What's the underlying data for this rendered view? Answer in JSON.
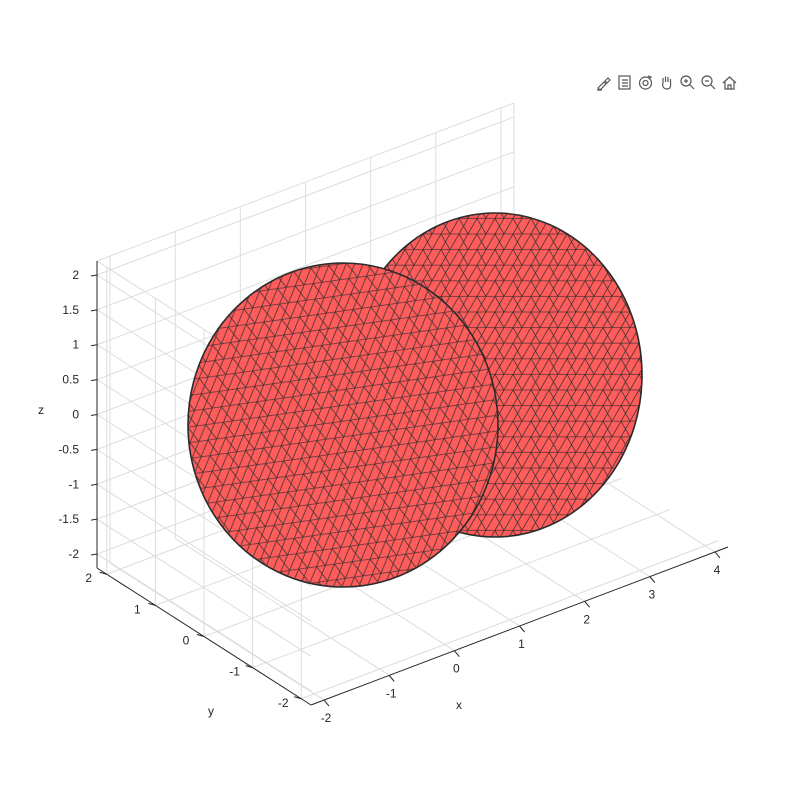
{
  "toolbar": {
    "items": [
      {
        "icon": "brush-icon",
        "tooltip": ""
      },
      {
        "icon": "legend-icon",
        "tooltip": ""
      },
      {
        "icon": "rotate-3d-icon",
        "tooltip": ""
      },
      {
        "icon": "pan-hand-icon",
        "tooltip": ""
      },
      {
        "icon": "zoom-in-icon",
        "tooltip": ""
      },
      {
        "icon": "zoom-out-icon",
        "tooltip": ""
      },
      {
        "icon": "home-icon",
        "tooltip": ""
      }
    ]
  },
  "chart_data": {
    "type": "3d-surface",
    "xlabel": "x",
    "ylabel": "y",
    "zlabel": "z",
    "xticks": [
      "-2",
      "-1",
      "0",
      "1",
      "2",
      "3",
      "4"
    ],
    "yticks": [
      "-2",
      "-1",
      "0",
      "1",
      "2"
    ],
    "zticks": [
      "-2",
      "-1.5",
      "-1",
      "-0.5",
      "0",
      "0.5",
      "1",
      "1.5",
      "2"
    ],
    "xlim": [
      -2.2,
      4.2
    ],
    "ylim": [
      -2.2,
      2.2
    ],
    "zlim": [
      -2.2,
      2.2
    ],
    "grid": true,
    "objects": [
      {
        "shape": "sphere",
        "center": [
          0,
          0,
          0
        ],
        "radius": 2,
        "mesh": "triangulated"
      },
      {
        "shape": "sphere",
        "center": [
          2,
          0,
          0
        ],
        "radius": 2,
        "mesh": "triangulated"
      }
    ],
    "colors": {
      "face": "#ff5c5c",
      "edge": "#2b2b2b",
      "grid": "#dcdcdc",
      "axis": "#262626"
    }
  }
}
